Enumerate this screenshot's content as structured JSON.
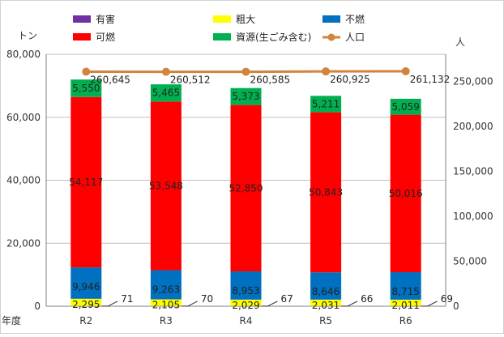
{
  "chart_data": {
    "type": "bar",
    "stacked": true,
    "categories": [
      "R2",
      "R3",
      "R4",
      "R5",
      "R6"
    ],
    "xlabel": "年度",
    "ylabel_left": "トン",
    "ylabel_right": "人",
    "ylim_left": [
      0,
      80000
    ],
    "yticks_left": [
      "0",
      "20,000",
      "40,000",
      "60,000",
      "80,000"
    ],
    "ylim_right": [
      0,
      280000
    ],
    "yticks_right": [
      "0",
      "50,000",
      "100,000",
      "150,000",
      "200,000",
      "250,000"
    ],
    "grid": true,
    "legend_position": "top",
    "series": [
      {
        "name": "有害",
        "color": "#7030A0",
        "values": [
          71,
          70,
          67,
          66,
          69
        ],
        "labels": [
          "71",
          "70",
          "67",
          "66",
          "69"
        ]
      },
      {
        "name": "粗大",
        "color": "#FFFF00",
        "values": [
          2295,
          2105,
          2029,
          2031,
          2011
        ],
        "labels": [
          "2,295",
          "2,105",
          "2,029",
          "2,031",
          "2,011"
        ]
      },
      {
        "name": "不燃",
        "color": "#0070C0",
        "values": [
          9946,
          9263,
          8953,
          8646,
          8715
        ],
        "labels": [
          "9,946",
          "9,263",
          "8,953",
          "8,646",
          "8,715"
        ]
      },
      {
        "name": "可燃",
        "color": "#FF0000",
        "values": [
          54117,
          53548,
          52850,
          50843,
          50016
        ],
        "labels": [
          "54,117",
          "53,548",
          "52,850",
          "50,843",
          "50,016"
        ]
      },
      {
        "name": "資源(生ごみ含む)",
        "color": "#00B050",
        "values": [
          5550,
          5465,
          5373,
          5211,
          5059
        ],
        "labels": [
          "5,550",
          "5,465",
          "5,373",
          "5,211",
          "5,059"
        ]
      }
    ],
    "line_series": {
      "name": "人口",
      "color": "#D2843C",
      "axis": "right",
      "values": [
        260645,
        260512,
        260585,
        260925,
        261132
      ],
      "labels": [
        "260,645",
        "260,512",
        "260,585",
        "260,925",
        "261,132"
      ]
    }
  }
}
